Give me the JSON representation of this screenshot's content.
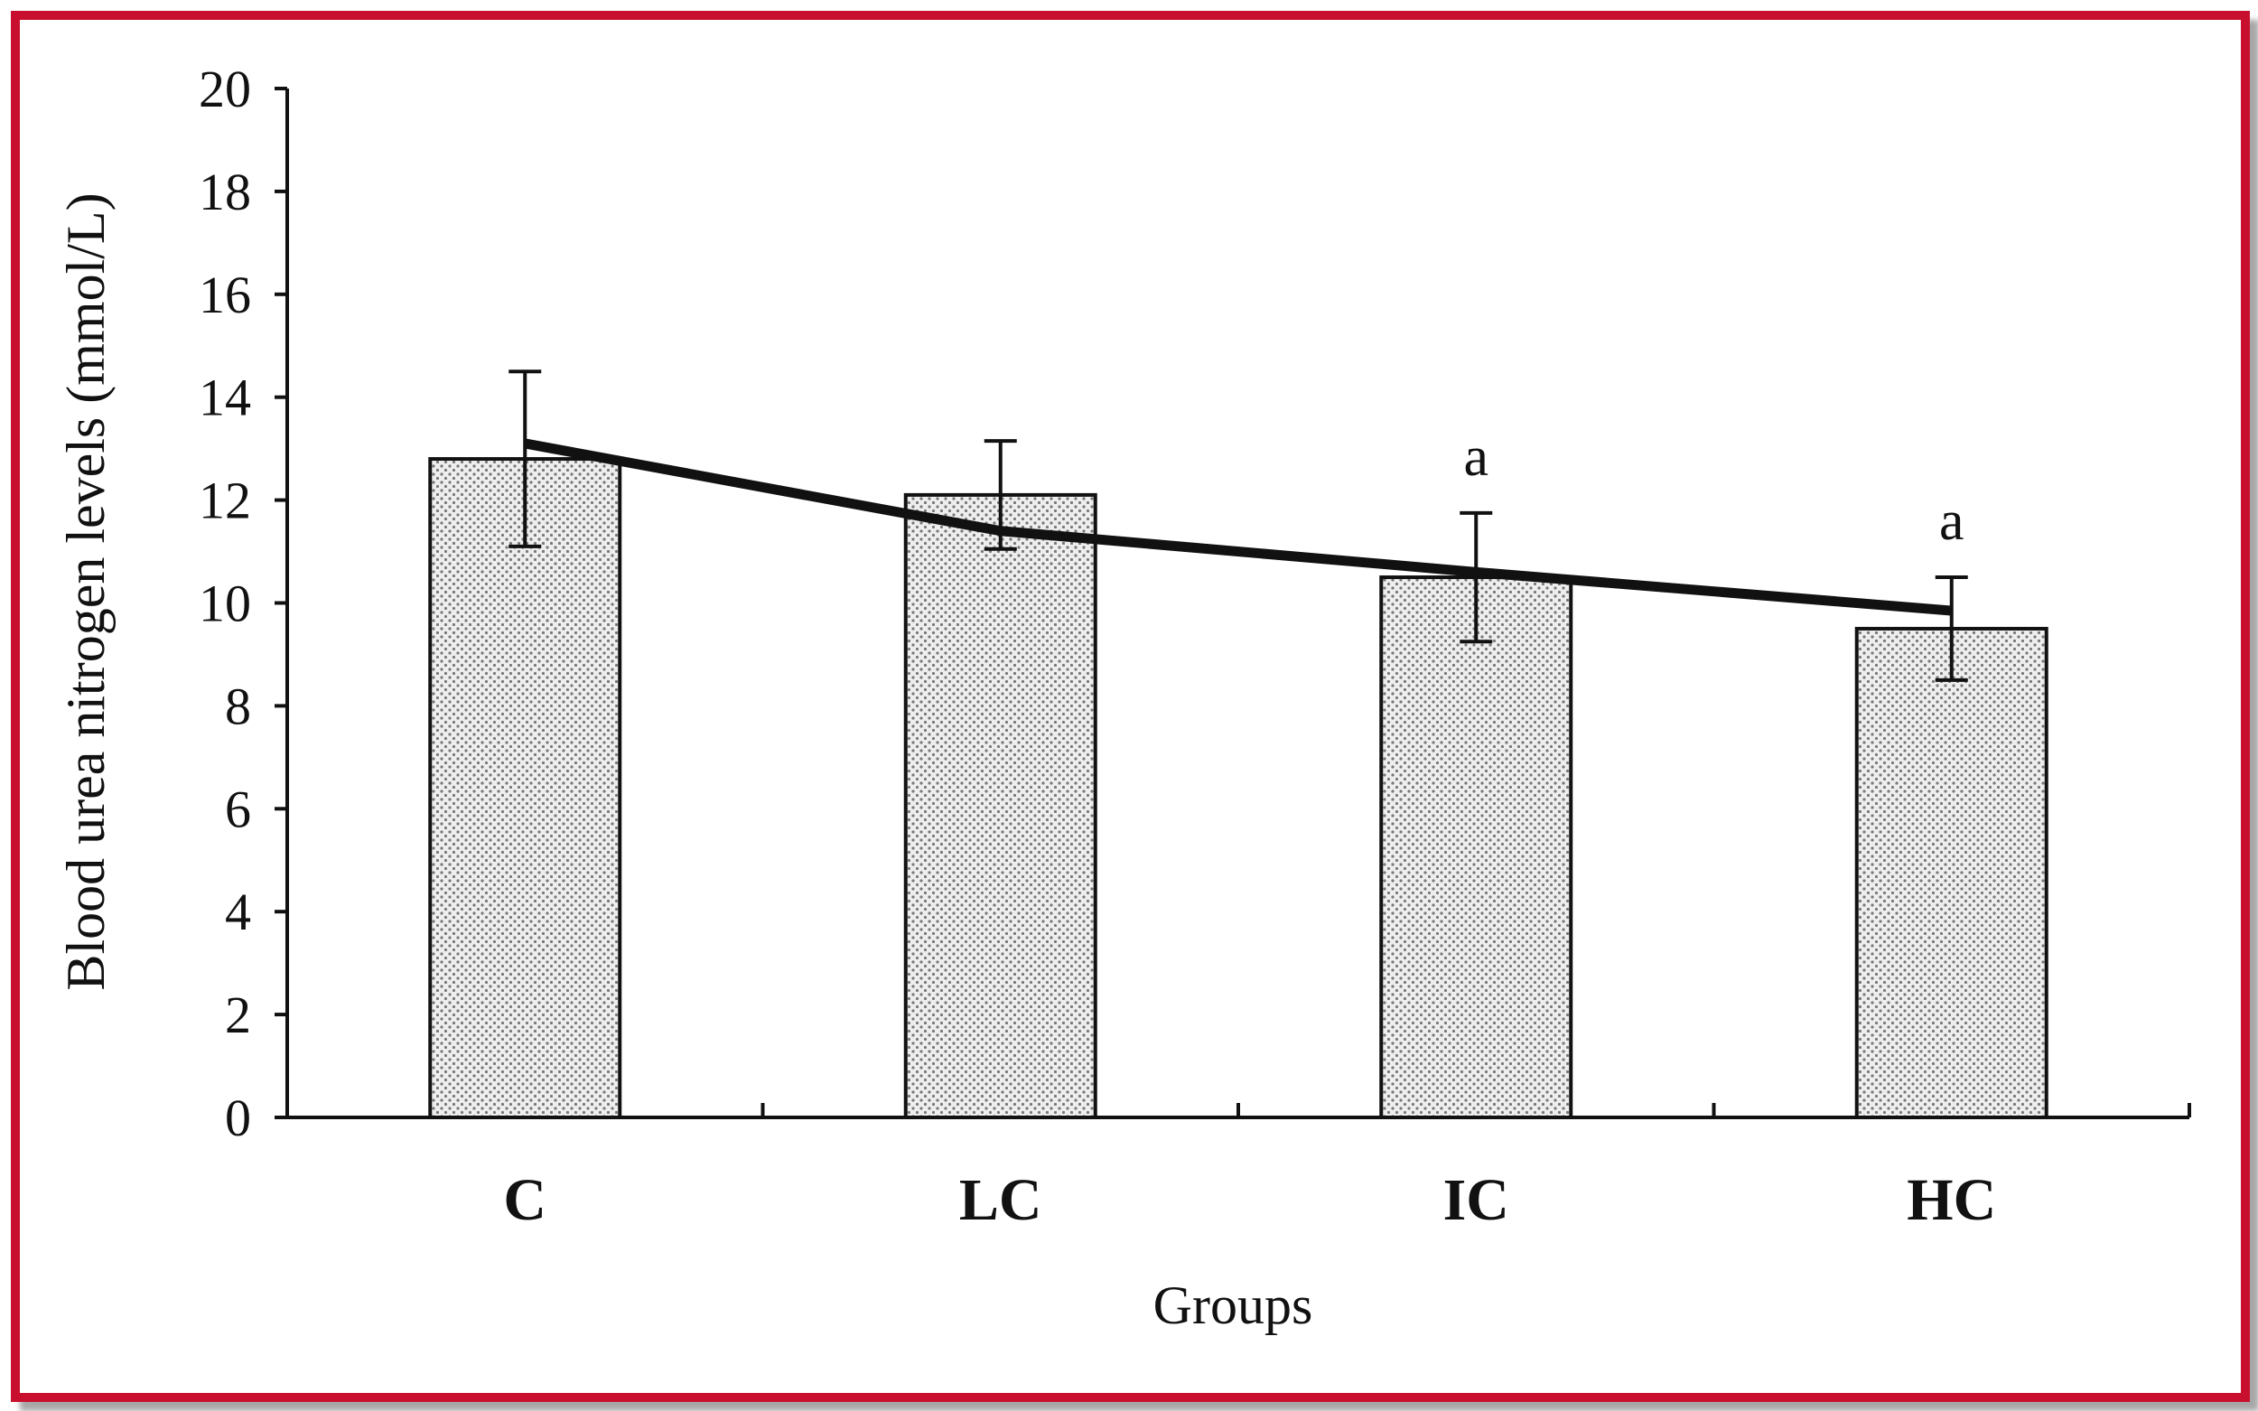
{
  "chart_data": {
    "type": "bar",
    "title": "",
    "xlabel": "Groups",
    "ylabel": "Blood urea nitrogen levels (mmol/L)",
    "categories": [
      "C",
      "LC",
      "IC",
      "HC"
    ],
    "values": [
      12.8,
      12.1,
      10.5,
      9.5
    ],
    "errors": [
      1.7,
      1.05,
      1.25,
      1.0
    ],
    "annotations": [
      "",
      "",
      "a",
      "a"
    ],
    "trendline": [
      13.1,
      11.4,
      10.6,
      9.85
    ],
    "ylim": [
      0,
      20
    ],
    "yticks": [
      0,
      2,
      4,
      6,
      8,
      10,
      12,
      14,
      16,
      18,
      20
    ],
    "grid": false,
    "bar_fill": "#e4e4e4",
    "border_color": "#c8102e"
  }
}
